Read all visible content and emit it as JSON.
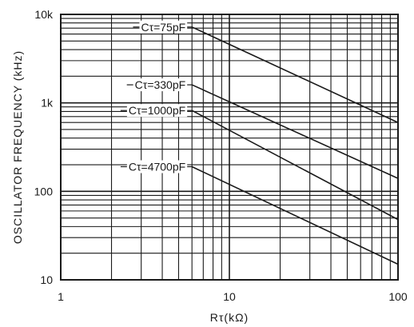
{
  "chart_data": {
    "type": "line",
    "title": "",
    "xlabel": "Rτ(kΩ)",
    "ylabel": "OSCILLATOR  FREQUENCY  (kHz)",
    "x_scale": "log",
    "y_scale": "log",
    "xlim": [
      1,
      100
    ],
    "ylim": [
      10,
      10000
    ],
    "grid": true,
    "x_tick_labels": [
      {
        "value": 1,
        "label": "1"
      },
      {
        "value": 10,
        "label": "10"
      },
      {
        "value": 100,
        "label": "100"
      }
    ],
    "y_tick_labels": [
      {
        "value": 10,
        "label": "10"
      },
      {
        "value": 100,
        "label": "100"
      },
      {
        "value": 1000,
        "label": "1k"
      },
      {
        "value": 10000,
        "label": "10k"
      }
    ],
    "series": [
      {
        "name": "Cτ=75pF",
        "x": [
          6,
          100
        ],
        "y": [
          7200,
          600
        ]
      },
      {
        "name": "Cτ=330pF",
        "x": [
          6,
          100
        ],
        "y": [
          1600,
          140
        ]
      },
      {
        "name": "Cτ=1000pF",
        "x": [
          6,
          100
        ],
        "y": [
          820,
          48
        ]
      },
      {
        "name": "Cτ=4700pF",
        "x": [
          6,
          100
        ],
        "y": [
          190,
          15
        ]
      }
    ]
  }
}
